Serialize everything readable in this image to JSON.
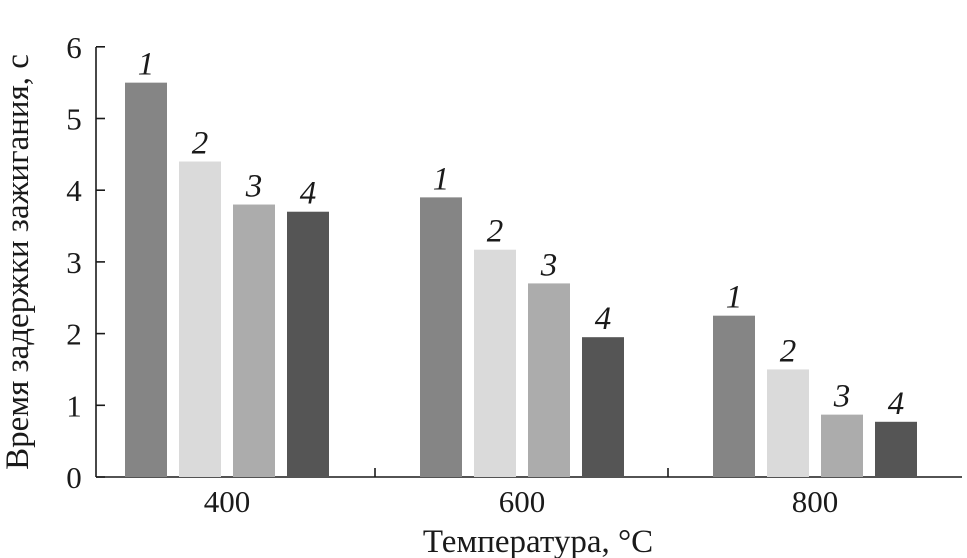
{
  "chart_data": {
    "type": "bar",
    "title": "",
    "xlabel": "Температура, °C",
    "ylabel": "Время задержки зажигания, с",
    "categories": [
      "400",
      "600",
      "800"
    ],
    "ylim": [
      0,
      6
    ],
    "yticks": [
      "0",
      "1",
      "2",
      "3",
      "4",
      "5",
      "6"
    ],
    "grid": false,
    "legend": "none",
    "series": [
      {
        "label": "1",
        "color": "#858585",
        "values": [
          5.5,
          3.9,
          2.25
        ]
      },
      {
        "label": "2",
        "color": "#dadada",
        "values": [
          4.4,
          3.17,
          1.5
        ]
      },
      {
        "label": "3",
        "color": "#acacac",
        "values": [
          3.8,
          2.7,
          0.87
        ]
      },
      {
        "label": "4",
        "color": "#555555",
        "values": [
          3.7,
          1.95,
          0.77
        ]
      }
    ]
  }
}
